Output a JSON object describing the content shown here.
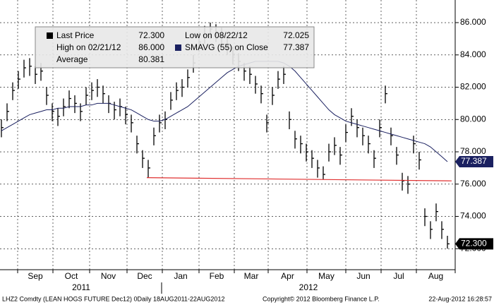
{
  "chart_data": {
    "type": "ohlc",
    "legend": {
      "last_price_label": "Last Price",
      "last_price": "72.300",
      "high_label": "High on 02/21/12",
      "high": "86.000",
      "average_label": "Average",
      "average": "80.381",
      "low_label": "Low on 08/22/12",
      "low": "72.025",
      "sma_label": "SMAVG (55) on Close",
      "sma": "77.387"
    },
    "high": [
      80.0,
      81.0,
      82.3,
      83.0,
      83.7,
      83.8,
      83.3,
      83.5,
      82.0,
      81.0,
      80.7,
      81.3,
      81.8,
      81.5,
      81.0,
      82.0,
      82.3,
      82.5,
      82.1,
      81.5,
      81.1,
      81.3,
      80.8,
      80.3,
      79.0,
      78.1,
      77.5,
      79.5,
      80.3,
      80.5,
      81.7,
      82.3,
      82.5,
      83.1,
      84.0,
      85.3,
      85.8,
      86.0,
      85.9,
      85.7,
      85.1,
      84.5,
      84.1,
      83.5,
      83.3,
      82.7,
      82.1,
      80.3,
      82.0,
      83.0,
      83.3,
      80.5,
      79.3,
      79.0,
      78.5,
      78.1,
      77.5,
      77.1,
      78.5,
      78.9,
      78.3,
      79.7,
      80.7,
      80.0,
      79.5,
      79.0,
      78.1,
      80.0,
      82.1,
      79.5,
      78.3,
      76.7,
      76.5,
      79.0,
      78.0,
      74.5,
      73.7,
      74.8,
      73.7,
      72.8
    ],
    "low": [
      78.9,
      79.9,
      81.2,
      81.9,
      82.6,
      82.7,
      82.2,
      82.4,
      80.9,
      79.9,
      79.6,
      80.2,
      80.7,
      80.4,
      79.9,
      80.9,
      81.2,
      81.4,
      81.0,
      80.4,
      80.0,
      80.2,
      79.7,
      79.2,
      77.9,
      77.0,
      76.4,
      78.4,
      79.2,
      79.4,
      80.6,
      81.2,
      81.4,
      82.0,
      82.9,
      84.2,
      84.7,
      85.0,
      84.8,
      84.6,
      84.0,
      83.4,
      83.0,
      82.4,
      82.2,
      81.6,
      81.0,
      79.2,
      80.9,
      81.9,
      82.2,
      79.4,
      78.2,
      77.9,
      77.4,
      77.0,
      76.4,
      76.3,
      77.4,
      77.8,
      77.2,
      78.6,
      79.6,
      78.9,
      78.4,
      77.9,
      77.0,
      78.9,
      81.0,
      78.4,
      77.2,
      75.6,
      75.4,
      77.9,
      76.9,
      73.4,
      72.6,
      73.7,
      72.6,
      72.0
    ],
    "close": [
      79.5,
      80.5,
      81.8,
      82.5,
      83.2,
      83.3,
      82.8,
      83.0,
      81.5,
      80.5,
      80.2,
      80.8,
      81.3,
      81.0,
      80.5,
      81.5,
      81.8,
      82.0,
      81.6,
      81.0,
      80.6,
      80.8,
      80.3,
      79.8,
      78.5,
      77.6,
      77.0,
      79.0,
      79.8,
      80.0,
      81.2,
      81.8,
      82.0,
      82.6,
      83.5,
      84.8,
      85.3,
      85.6,
      85.4,
      85.2,
      84.6,
      84.0,
      83.6,
      83.0,
      82.8,
      82.2,
      81.6,
      79.8,
      81.5,
      82.5,
      82.8,
      80.0,
      78.8,
      78.5,
      78.0,
      77.6,
      77.0,
      76.6,
      78.0,
      78.4,
      77.8,
      79.2,
      80.2,
      79.5,
      79.0,
      78.5,
      77.6,
      79.5,
      81.6,
      79.0,
      77.8,
      76.2,
      76.0,
      78.5,
      77.5,
      74.0,
      73.2,
      74.3,
      73.2,
      72.3
    ],
    "sma": {
      "color": "#1a2060",
      "values": [
        79.3,
        79.5,
        79.7,
        79.9,
        80.1,
        80.3,
        80.4,
        80.5,
        80.6,
        80.6,
        80.7,
        80.7,
        80.8,
        80.8,
        80.8,
        80.9,
        80.9,
        81.0,
        81.0,
        81.0,
        80.9,
        80.8,
        80.7,
        80.6,
        80.4,
        80.2,
        80.0,
        79.9,
        79.9,
        80.0,
        80.2,
        80.4,
        80.6,
        80.8,
        81.1,
        81.4,
        81.7,
        82.0,
        82.3,
        82.6,
        82.9,
        83.1,
        83.3,
        83.4,
        83.5,
        83.6,
        83.6,
        83.6,
        83.6,
        83.6,
        83.5,
        83.3,
        83.0,
        82.6,
        82.2,
        81.8,
        81.4,
        81.0,
        80.6,
        80.3,
        80.1,
        79.9,
        79.8,
        79.7,
        79.6,
        79.5,
        79.4,
        79.3,
        79.2,
        79.1,
        79.0,
        78.9,
        78.8,
        78.7,
        78.6,
        78.5,
        78.3,
        78.0,
        77.7,
        77.387
      ]
    },
    "support_line": {
      "color": "#e03030",
      "values": [
        76.4,
        76.2
      ]
    },
    "ylim": [
      70.7,
      87.4
    ],
    "yticks": [
      {
        "value": 72,
        "label": "72.000"
      },
      {
        "value": 74,
        "label": "74.000"
      },
      {
        "value": 76,
        "label": "76.000"
      },
      {
        "value": 78,
        "label": "78.000"
      },
      {
        "value": 80,
        "label": "80.000"
      },
      {
        "value": 82,
        "label": "82.000"
      },
      {
        "value": 84,
        "label": "84.000"
      },
      {
        "value": 86,
        "label": "86.000"
      }
    ],
    "months": [
      "Sep",
      "Oct",
      "Nov",
      "Dec",
      "Jan",
      "Feb",
      "Mar",
      "Apr",
      "May",
      "Jun",
      "Jul",
      "Aug"
    ],
    "years": [
      "2011",
      "2012"
    ],
    "footer": {
      "security": "LHZ2 Comdty (LEAN HOGS FUTURE  Dec12) 0Daily 18AUG2011-22AUG2012",
      "copyright": "Copyright© 2012 Bloomberg Finance L.P.",
      "timestamp": "22-Aug-2012 16:28:57"
    },
    "grid": true
  }
}
